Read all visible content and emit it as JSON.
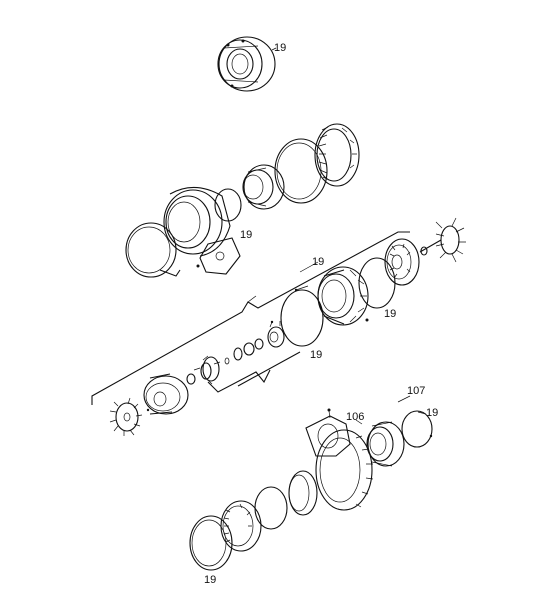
{
  "labels": {
    "top": "19",
    "upper": "19",
    "mid_top": "19",
    "mid_right": "19",
    "mid_low": "19",
    "l107": "107",
    "l106": "106",
    "lower_right": "19",
    "bottom": "19"
  }
}
